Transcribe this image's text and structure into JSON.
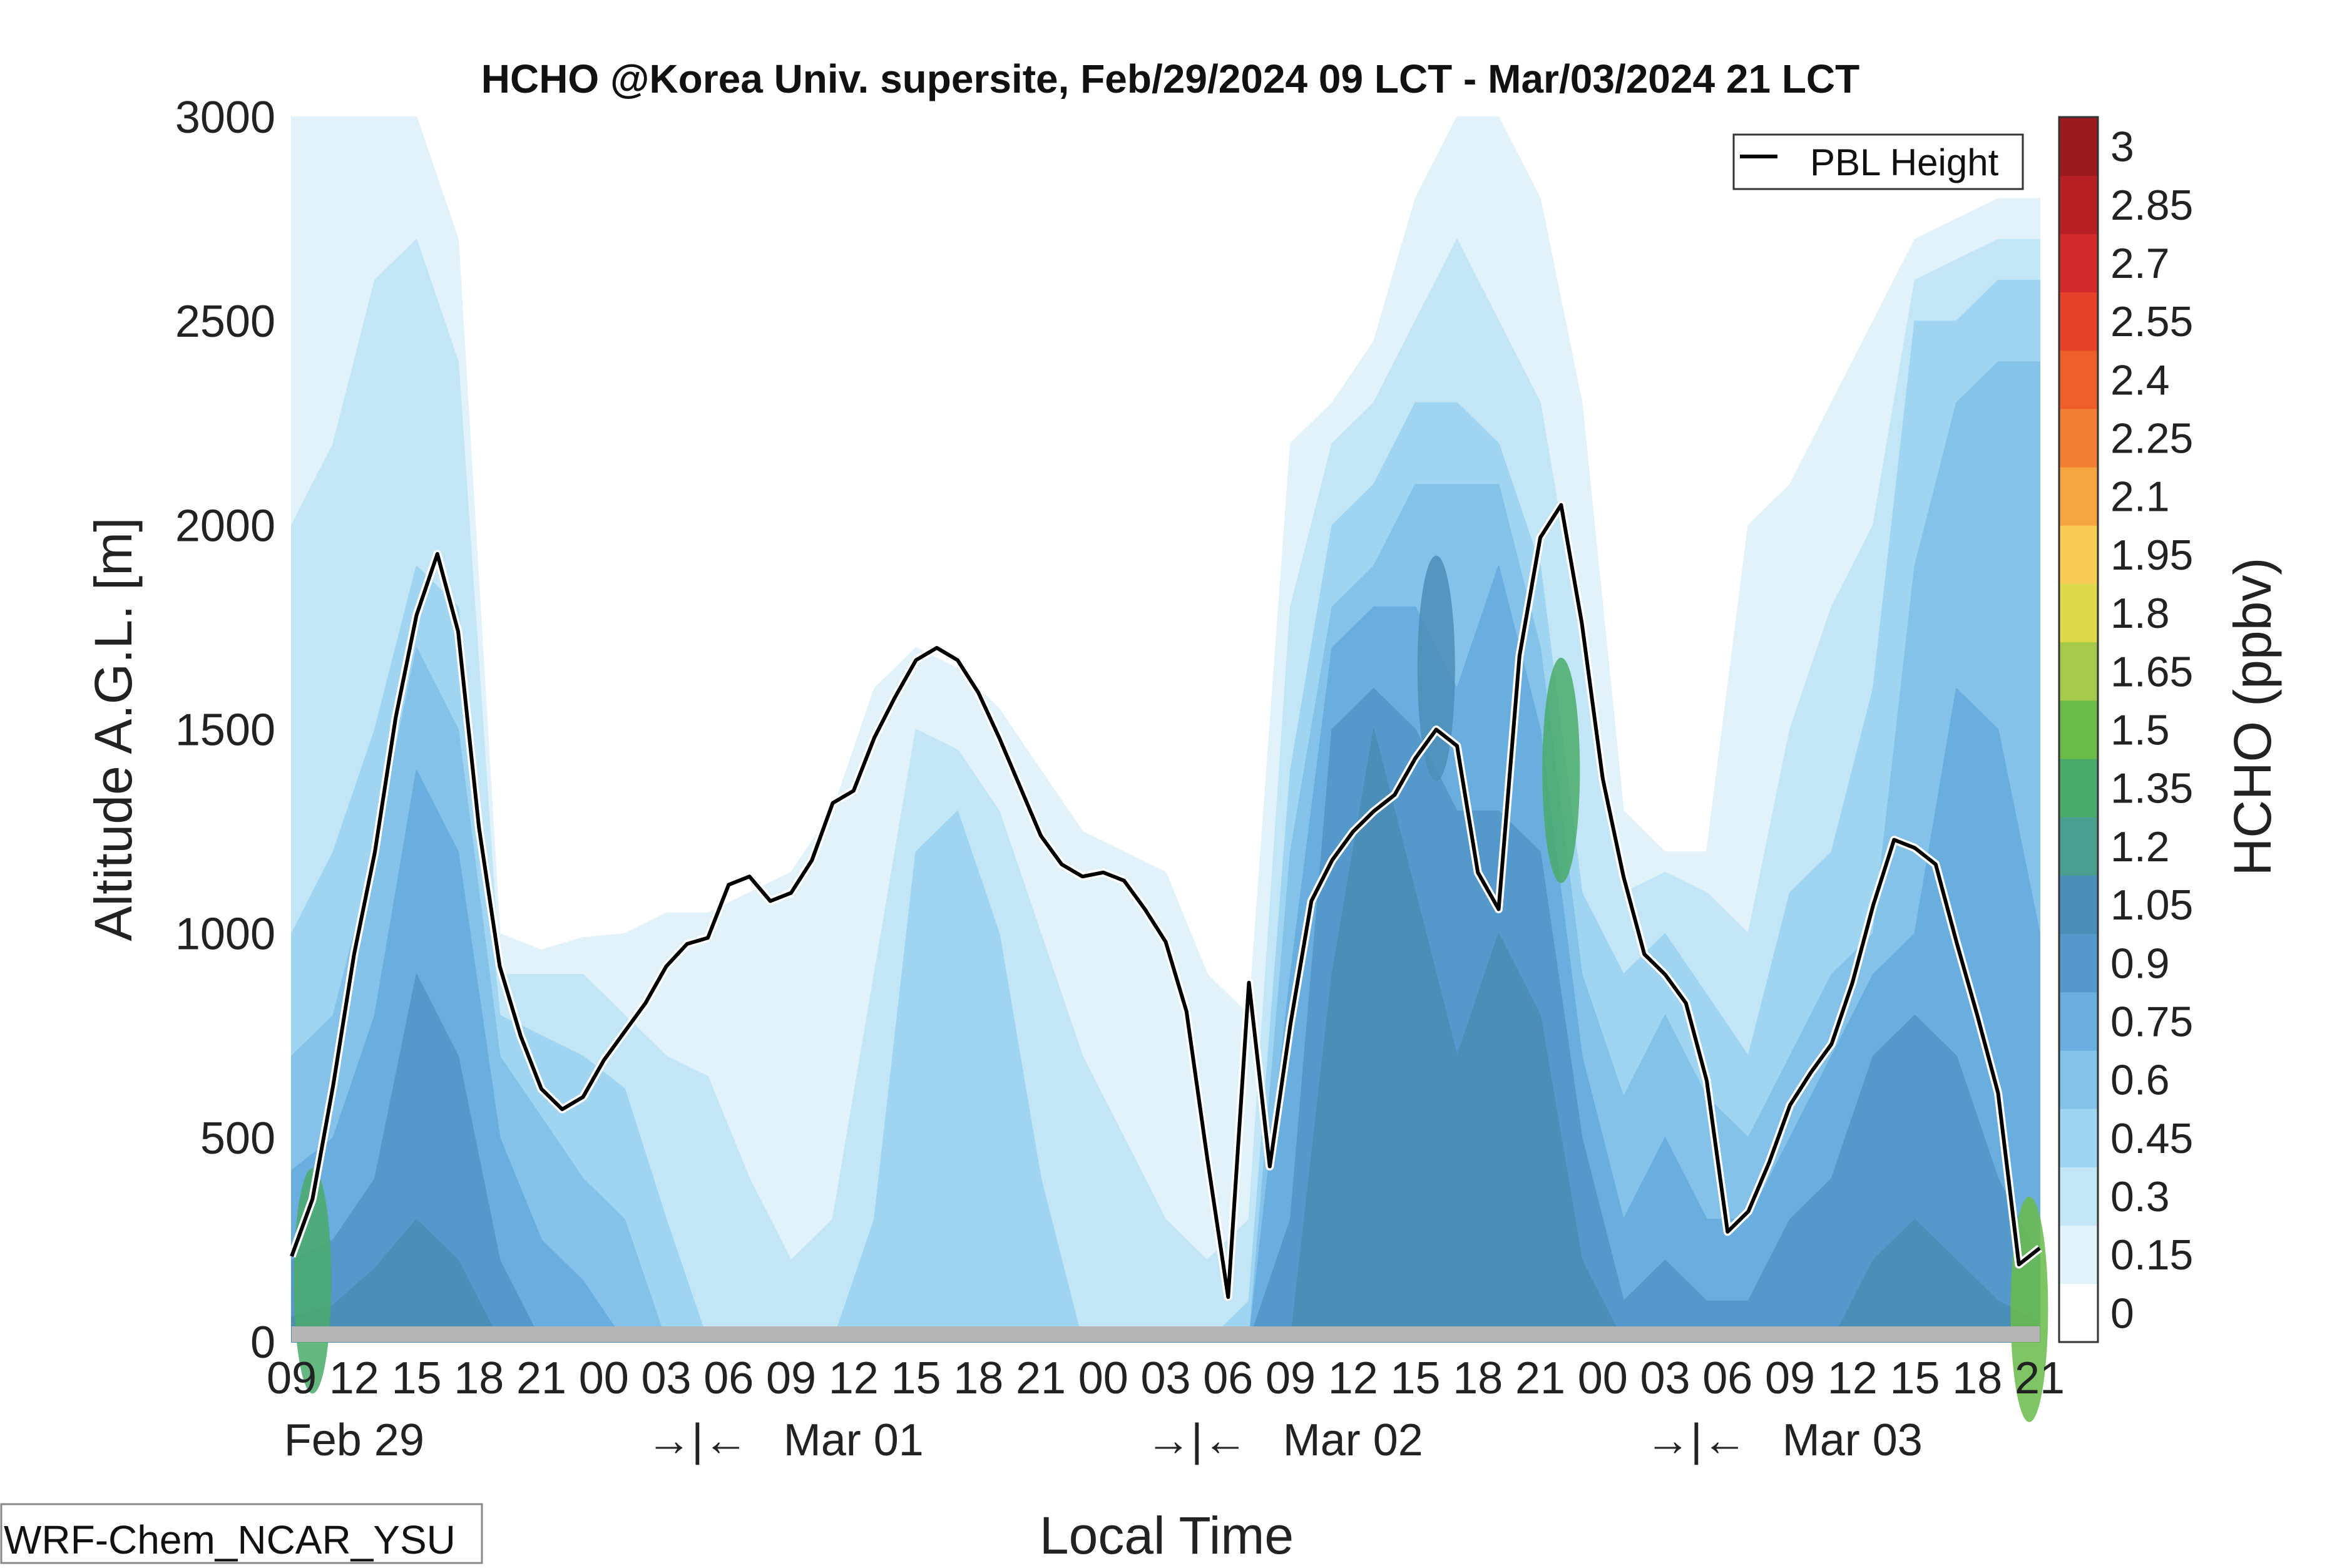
{
  "chart_data": {
    "type": "heatmap",
    "title": "HCHO @Korea Univ. supersite, Feb/29/2024 09 LCT - Mar/03/2024 21 LCT",
    "xlabel": "Local Time",
    "ylabel": "Altitude A.G.L. [m]",
    "colorbar_label": "HCHO (ppbv)",
    "model_label": "WRF-Chem_NCAR_YSU",
    "ylim": [
      0,
      3000
    ],
    "y_ticks": [
      0,
      500,
      1000,
      1500,
      2000,
      2500,
      3000
    ],
    "x_hours": [
      9,
      12,
      15,
      18,
      21,
      24,
      27,
      30,
      33,
      36,
      39,
      42,
      45,
      48,
      51,
      54,
      57,
      60,
      63,
      66,
      69,
      72,
      75,
      78,
      81,
      84,
      87,
      90,
      93
    ],
    "x_tick_labels": [
      "09",
      "12",
      "15",
      "18",
      "21",
      "00",
      "03",
      "06",
      "09",
      "12",
      "15",
      "18",
      "21",
      "00",
      "03",
      "06",
      "09",
      "12",
      "15",
      "18",
      "21",
      "00",
      "03",
      "06",
      "09",
      "12",
      "15",
      "18",
      "21"
    ],
    "date_labels": [
      {
        "hour": 12,
        "text": "Feb 29"
      },
      {
        "hour": 28.5,
        "text": "→|←"
      },
      {
        "hour": 36,
        "text": "Mar 01"
      },
      {
        "hour": 52.5,
        "text": "→|←"
      },
      {
        "hour": 60,
        "text": "Mar 02"
      },
      {
        "hour": 76.5,
        "text": "→|←"
      },
      {
        "hour": 84,
        "text": "Mar 03"
      }
    ],
    "colorbar_levels": [
      "0",
      "0.15",
      "0.3",
      "0.45",
      "0.6",
      "0.75",
      "0.9",
      "1.05",
      "1.2",
      "1.35",
      "1.5",
      "1.65",
      "1.8",
      "1.95",
      "2.1",
      "2.25",
      "2.4",
      "2.55",
      "2.7",
      "2.85",
      "3"
    ],
    "colorbar_colors": [
      "#ffffff",
      "#e2f2fb",
      "#c3e6f7",
      "#a0d5f2",
      "#84c2ea",
      "#6aaee0",
      "#5598cc",
      "#4b8eb8",
      "#4a9e90",
      "#4aaa6a",
      "#6abb4a",
      "#a5c94a",
      "#dcd94a",
      "#f6cc55",
      "#f5a643",
      "#f27f33",
      "#ee5e2b",
      "#e4422b",
      "#d22a2b",
      "#b81f24",
      "#9a1a1e"
    ],
    "legend": {
      "entries": [
        "PBL Height"
      ],
      "placement": "top-right"
    },
    "pbl_height": {
      "name": "PBL Height",
      "hours": [
        9,
        10,
        11,
        12,
        13,
        14,
        15,
        16,
        17,
        18,
        19,
        20,
        21,
        22,
        23,
        24,
        25,
        26,
        27,
        28,
        29,
        30,
        31,
        32,
        33,
        34,
        35,
        36,
        37,
        38,
        39,
        40,
        41,
        42,
        43,
        44,
        45,
        46,
        47,
        48,
        49,
        50,
        51,
        52,
        53,
        54,
        55,
        56,
        57,
        58,
        59,
        60,
        61,
        62,
        63,
        64,
        65,
        66,
        67,
        68,
        69,
        70,
        71,
        72,
        73,
        74,
        75,
        76,
        77,
        78,
        79,
        80,
        81,
        82,
        83,
        84,
        85,
        86,
        87,
        88,
        89,
        90,
        91,
        92,
        93
      ],
      "values": [
        210,
        350,
        630,
        950,
        1200,
        1530,
        1780,
        1930,
        1740,
        1260,
        920,
        750,
        620,
        570,
        600,
        690,
        760,
        830,
        920,
        975,
        990,
        1120,
        1140,
        1080,
        1100,
        1180,
        1320,
        1350,
        1480,
        1580,
        1670,
        1700,
        1670,
        1590,
        1480,
        1360,
        1240,
        1170,
        1140,
        1150,
        1130,
        1060,
        980,
        810,
        450,
        110,
        880,
        430,
        780,
        1080,
        1180,
        1250,
        1300,
        1340,
        1430,
        1500,
        1460,
        1150,
        1060,
        1680,
        1970,
        2050,
        1760,
        1380,
        1140,
        950,
        900,
        830,
        640,
        270,
        320,
        440,
        580,
        660,
        730,
        880,
        1070,
        1230,
        1210,
        1170,
        980,
        800,
        610,
        190,
        230
      ]
    },
    "hcho_field": {
      "note_units": "ppbv",
      "hours": [
        9,
        11,
        13,
        15,
        17,
        19,
        21,
        23,
        25,
        27,
        29,
        31,
        33,
        35,
        37,
        39,
        41,
        43,
        45,
        47,
        49,
        51,
        53,
        55,
        57,
        59,
        61,
        63,
        65,
        67,
        69,
        71,
        73,
        75,
        77,
        79,
        81,
        83,
        85,
        87,
        89,
        91,
        93
      ],
      "altitudes": [
        50,
        150,
        250,
        400,
        550,
        700,
        850,
        1000,
        1150,
        1300,
        1500,
        1700,
        1900,
        2100,
        2300,
        2500,
        2750,
        3000
      ],
      "threshold_heights": [
        {
          "hour": 9,
          "levels": [
            3000,
            2000,
            1000,
            700,
            420,
            200,
            60
          ]
        },
        {
          "hour": 11,
          "levels": [
            3000,
            2200,
            1200,
            800,
            500,
            250,
            90
          ]
        },
        {
          "hour": 13,
          "levels": [
            3000,
            2600,
            1500,
            1200,
            800,
            400,
            180
          ]
        },
        {
          "hour": 15,
          "levels": [
            3000,
            2700,
            1900,
            1700,
            1400,
            900,
            300
          ]
        },
        {
          "hour": 17,
          "levels": [
            2700,
            2400,
            1800,
            1500,
            1200,
            700,
            200
          ]
        },
        {
          "hour": 19,
          "levels": [
            1000,
            900,
            800,
            700,
            500,
            200,
            0
          ]
        },
        {
          "hour": 21,
          "levels": [
            960,
            900,
            750,
            550,
            250,
            0,
            0
          ]
        },
        {
          "hour": 23,
          "levels": [
            990,
            900,
            700,
            400,
            150,
            0,
            0
          ]
        },
        {
          "hour": 25,
          "levels": [
            1000,
            800,
            620,
            300,
            0,
            0,
            0
          ]
        },
        {
          "hour": 27,
          "levels": [
            1050,
            700,
            300,
            0,
            0,
            0,
            0
          ]
        },
        {
          "hour": 29,
          "levels": [
            1050,
            650,
            0,
            0,
            0,
            0,
            0
          ]
        },
        {
          "hour": 31,
          "levels": [
            1100,
            400,
            0,
            0,
            0,
            0,
            0
          ]
        },
        {
          "hour": 33,
          "levels": [
            1150,
            200,
            0,
            0,
            0,
            0,
            0
          ]
        },
        {
          "hour": 35,
          "levels": [
            1300,
            300,
            0,
            0,
            0,
            0,
            0
          ]
        },
        {
          "hour": 37,
          "levels": [
            1600,
            900,
            300,
            0,
            0,
            0,
            0
          ]
        },
        {
          "hour": 39,
          "levels": [
            1700,
            1500,
            1200,
            0,
            0,
            0,
            0
          ]
        },
        {
          "hour": 41,
          "levels": [
            1650,
            1450,
            1300,
            0,
            0,
            0,
            0
          ]
        },
        {
          "hour": 43,
          "levels": [
            1550,
            1300,
            1000,
            0,
            0,
            0,
            0
          ]
        },
        {
          "hour": 45,
          "levels": [
            1400,
            1000,
            400,
            0,
            0,
            0,
            0
          ]
        },
        {
          "hour": 47,
          "levels": [
            1250,
            700,
            0,
            0,
            0,
            0,
            0
          ]
        },
        {
          "hour": 49,
          "levels": [
            1200,
            500,
            0,
            0,
            0,
            0,
            0
          ]
        },
        {
          "hour": 51,
          "levels": [
            1150,
            300,
            0,
            0,
            0,
            0,
            0
          ]
        },
        {
          "hour": 53,
          "levels": [
            900,
            200,
            0,
            0,
            0,
            0,
            0
          ]
        },
        {
          "hour": 55,
          "levels": [
            800,
            300,
            100,
            0,
            0,
            0,
            0
          ]
        },
        {
          "hour": 57,
          "levels": [
            2200,
            1800,
            1400,
            1200,
            900,
            300,
            0
          ]
        },
        {
          "hour": 59,
          "levels": [
            2300,
            2200,
            2000,
            1800,
            1700,
            1500,
            900
          ]
        },
        {
          "hour": 61,
          "levels": [
            2450,
            2300,
            2100,
            1900,
            1800,
            1600,
            1500
          ]
        },
        {
          "hour": 63,
          "levels": [
            2800,
            2500,
            2300,
            2100,
            1800,
            1500,
            1100
          ]
        },
        {
          "hour": 65,
          "levels": [
            3000,
            2700,
            2300,
            2100,
            1600,
            1300,
            700
          ]
        },
        {
          "hour": 67,
          "levels": [
            3000,
            2500,
            2200,
            2100,
            1900,
            1300,
            1000
          ]
        },
        {
          "hour": 69,
          "levels": [
            2800,
            2300,
            1900,
            1700,
            1500,
            1200,
            800
          ]
        },
        {
          "hour": 71,
          "levels": [
            2300,
            1700,
            1100,
            900,
            700,
            500,
            200
          ]
        },
        {
          "hour": 73,
          "levels": [
            1300,
            1100,
            900,
            600,
            300,
            100,
            0
          ]
        },
        {
          "hour": 75,
          "levels": [
            1200,
            1150,
            1000,
            800,
            500,
            200,
            0
          ]
        },
        {
          "hour": 77,
          "levels": [
            1200,
            1100,
            850,
            600,
            300,
            100,
            0
          ]
        },
        {
          "hour": 79,
          "levels": [
            2000,
            1000,
            700,
            500,
            300,
            100,
            0
          ]
        },
        {
          "hour": 81,
          "levels": [
            2100,
            1500,
            1100,
            700,
            500,
            300,
            0
          ]
        },
        {
          "hour": 83,
          "levels": [
            2300,
            1800,
            1200,
            900,
            700,
            400,
            0
          ]
        },
        {
          "hour": 85,
          "levels": [
            2500,
            2000,
            1600,
            1000,
            900,
            700,
            200
          ]
        },
        {
          "hour": 87,
          "levels": [
            2700,
            2600,
            2500,
            1900,
            1000,
            800,
            300
          ]
        },
        {
          "hour": 89,
          "levels": [
            2750,
            2650,
            2500,
            2300,
            1600,
            700,
            200
          ]
        },
        {
          "hour": 91,
          "levels": [
            2800,
            2700,
            2600,
            2400,
            1500,
            400,
            100
          ]
        },
        {
          "hour": 93,
          "levels": [
            2800,
            2700,
            2600,
            2400,
            1000,
            200,
            50
          ]
        }
      ],
      "threshold_values": [
        0.15,
        0.3,
        0.45,
        0.6,
        0.75,
        0.9,
        1.05
      ],
      "high_spots": [
        {
          "hour": 10,
          "altitude": 150,
          "value": 1.35
        },
        {
          "hour": 64,
          "altitude": 1650,
          "value": 1.05
        },
        {
          "hour": 70,
          "altitude": 1400,
          "value": 1.35
        },
        {
          "hour": 92.5,
          "altitude": 80,
          "value": 1.5
        }
      ]
    }
  }
}
